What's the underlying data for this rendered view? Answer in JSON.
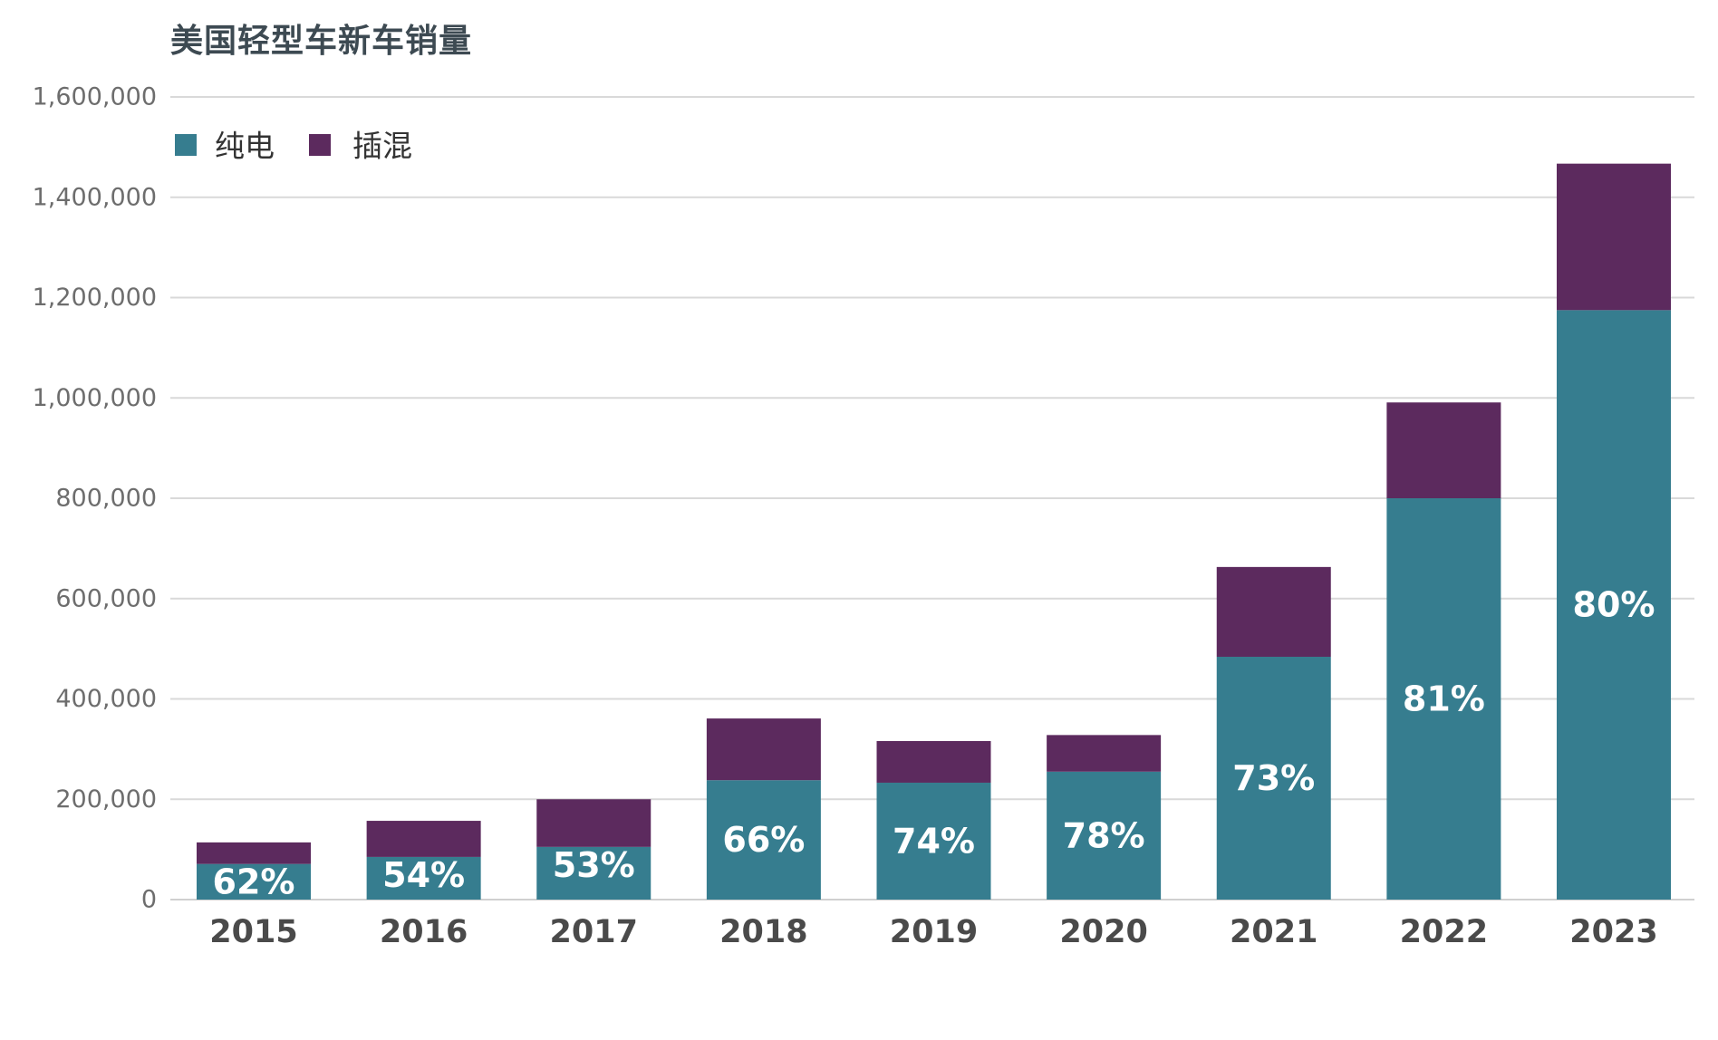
{
  "chart_data": {
    "type": "bar",
    "stacked": true,
    "title": "美国轻型车新车销量",
    "xlabel": "",
    "ylabel": "",
    "categories": [
      "2015",
      "2016",
      "2017",
      "2018",
      "2019",
      "2020",
      "2021",
      "2022",
      "2023"
    ],
    "series": [
      {
        "name": "纯电",
        "color": "#367d8f",
        "values": [
          71000,
          85000,
          105000,
          238000,
          233000,
          255000,
          484000,
          800000,
          1175000
        ],
        "data_labels": [
          "62%",
          "54%",
          "53%",
          "66%",
          "74%",
          "78%",
          "73%",
          "81%",
          "80%"
        ]
      },
      {
        "name": "插混",
        "color": "#5c2a5e",
        "values": [
          43000,
          72000,
          95000,
          123000,
          83000,
          73000,
          179000,
          191000,
          292000
        ]
      }
    ],
    "ylim": [
      0,
      1600000
    ],
    "yticks": [
      0,
      200000,
      400000,
      600000,
      800000,
      1000000,
      1200000,
      1400000,
      1600000
    ],
    "ytick_labels": [
      "0",
      "200,000",
      "400,000",
      "600,000",
      "800,000",
      "1,000,000",
      "1,200,000",
      "1,400,000",
      "1,600,000"
    ],
    "grid": true,
    "legend_position": "top-left"
  }
}
